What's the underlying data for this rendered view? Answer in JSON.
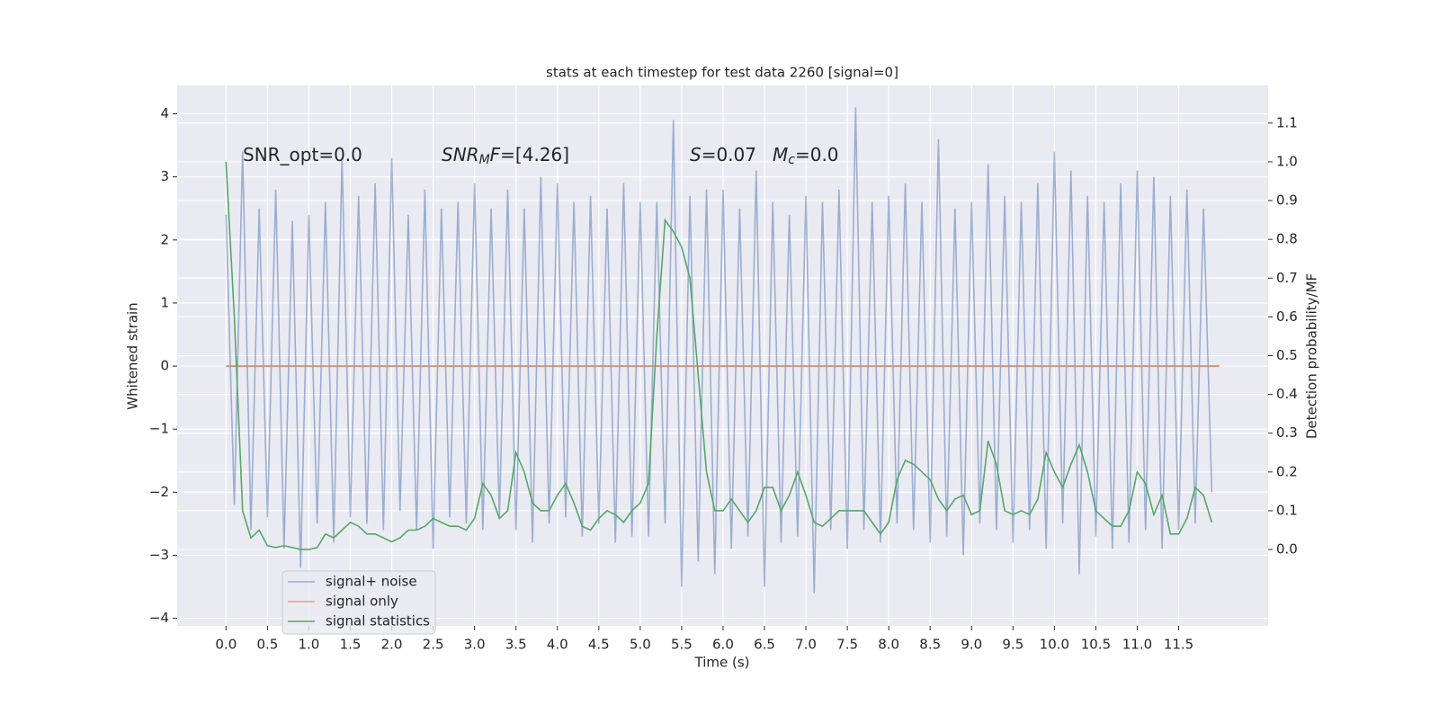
{
  "chart_data": {
    "type": "line",
    "title": "stats at each timestep for test data 2260 [signal=0]",
    "xlabel": "Time (s)",
    "ylabel": "Whitened strain",
    "y2label": "Detection probability/MF",
    "xlim": [
      -0.59,
      12.58
    ],
    "ylim": [
      -4.12,
      4.45
    ],
    "y2lim": [
      -0.197,
      1.197
    ],
    "xticks": [
      {
        "value": 0,
        "label": "0.0"
      },
      0.5,
      {
        "value": 1,
        "label": "1.0"
      },
      1.5,
      {
        "value": 2,
        "label": "2.0"
      },
      2.5,
      {
        "value": 3,
        "label": "3.0"
      },
      3.5,
      {
        "value": 4,
        "label": "4.0"
      },
      4.5,
      {
        "value": 5,
        "label": "5.0"
      },
      5.5,
      {
        "value": 6,
        "label": "6.0"
      },
      6.5,
      {
        "value": 7,
        "label": "7.0"
      },
      7.5,
      {
        "value": 8,
        "label": "8.0"
      },
      8.5,
      {
        "value": 9,
        "label": "9.0"
      },
      9.5,
      {
        "value": 10,
        "label": "10.0"
      },
      10.5,
      {
        "value": 11,
        "label": "11.0"
      },
      11.5
    ],
    "yticks": [
      {
        "value": -4,
        "label": "−4"
      },
      {
        "value": -3,
        "label": "−3"
      },
      {
        "value": -2,
        "label": "−2"
      },
      {
        "value": -1,
        "label": "−1"
      },
      0,
      1,
      2,
      3,
      4
    ],
    "y2ticks": [
      {
        "value": 0,
        "label": "0.0"
      },
      0.1,
      0.2,
      0.3,
      0.4,
      0.5,
      0.6,
      0.7,
      0.8,
      0.9,
      {
        "value": 1,
        "label": "1.0"
      },
      1.1
    ],
    "grid": true,
    "legend": "lower left",
    "x": [
      0.0,
      0.1,
      0.2,
      0.3,
      0.4,
      0.5,
      0.6,
      0.7,
      0.8,
      0.9,
      1.0,
      1.1,
      1.2,
      1.3,
      1.4,
      1.5,
      1.6,
      1.7,
      1.8,
      1.9,
      2.0,
      2.1,
      2.2,
      2.3,
      2.4,
      2.5,
      2.6,
      2.7,
      2.8,
      2.9,
      3.0,
      3.1,
      3.2,
      3.3,
      3.4,
      3.5,
      3.6,
      3.7,
      3.8,
      3.9,
      4.0,
      4.1,
      4.2,
      4.3,
      4.4,
      4.5,
      4.6,
      4.7,
      4.8,
      4.9,
      5.0,
      5.1,
      5.2,
      5.3,
      5.4,
      5.5,
      5.6,
      5.7,
      5.8,
      5.9,
      6.0,
      6.1,
      6.2,
      6.3,
      6.4,
      6.5,
      6.6,
      6.7,
      6.8,
      6.9,
      7.0,
      7.1,
      7.2,
      7.3,
      7.4,
      7.5,
      7.6,
      7.7,
      7.8,
      7.9,
      8.0,
      8.1,
      8.2,
      8.3,
      8.4,
      8.5,
      8.6,
      8.7,
      8.8,
      8.9,
      9.0,
      9.1,
      9.2,
      9.3,
      9.4,
      9.5,
      9.6,
      9.7,
      9.8,
      9.9,
      10.0,
      10.1,
      10.2,
      10.3,
      10.4,
      10.5,
      10.6,
      10.7,
      10.8,
      10.9,
      11.0,
      11.1,
      11.2,
      11.3,
      11.4,
      11.5,
      11.6,
      11.7,
      11.8,
      11.9
    ],
    "series": [
      {
        "name": "signal+ noise",
        "color": "#4c72b0",
        "opacity": 0.5,
        "values": [
          2.4,
          -2.2,
          3.4,
          -2.6,
          2.5,
          -2.4,
          2.8,
          -2.9,
          2.3,
          -3.2,
          2.4,
          -2.5,
          2.6,
          -2.8,
          3.3,
          -2.4,
          2.7,
          -2.5,
          2.9,
          -2.6,
          3.3,
          -2.3,
          2.4,
          -2.6,
          2.8,
          -2.9,
          2.5,
          -2.4,
          2.6,
          -2.5,
          2.9,
          -2.6,
          2.5,
          -2.4,
          2.8,
          -2.6,
          2.5,
          -2.8,
          3.0,
          -2.5,
          2.9,
          -2.4,
          2.6,
          -2.7,
          2.7,
          -2.5,
          2.5,
          -2.8,
          2.9,
          -2.7,
          2.6,
          -2.7,
          2.6,
          -2.5,
          3.9,
          -3.5,
          2.7,
          -3.1,
          2.8,
          -3.3,
          2.8,
          -2.9,
          2.5,
          -2.7,
          3.1,
          -3.5,
          2.6,
          -2.8,
          2.4,
          -2.7,
          2.7,
          -3.6,
          2.6,
          -2.6,
          2.8,
          -2.9,
          4.1,
          -2.6,
          2.6,
          -2.8,
          2.7,
          -2.5,
          2.9,
          -2.6,
          2.6,
          -2.8,
          3.6,
          -2.7,
          2.5,
          -3.0,
          2.6,
          -2.5,
          3.2,
          -2.6,
          2.7,
          -2.8,
          2.6,
          -2.6,
          2.9,
          -2.9,
          3.4,
          -2.5,
          3.1,
          -3.3,
          2.7,
          -2.7,
          2.6,
          -2.9,
          2.9,
          -2.8,
          3.1,
          -2.6,
          3.0,
          -2.9,
          2.7,
          -2.6,
          2.8,
          -2.5,
          2.5,
          -2.0
        ]
      },
      {
        "name": "signal only",
        "color": "#dd8452",
        "x": [
          0.0,
          11.99
        ],
        "values": [
          0,
          0
        ]
      },
      {
        "name": "signal statistics",
        "color": "#55a868",
        "axis": "y2",
        "values": [
          1.0,
          0.6,
          0.1,
          0.03,
          0.05,
          0.01,
          0.005,
          0.01,
          0.005,
          0.0,
          0.0,
          0.005,
          0.04,
          0.03,
          0.05,
          0.07,
          0.06,
          0.04,
          0.04,
          0.03,
          0.02,
          0.03,
          0.05,
          0.05,
          0.06,
          0.08,
          0.07,
          0.06,
          0.06,
          0.05,
          0.08,
          0.17,
          0.14,
          0.08,
          0.1,
          0.25,
          0.2,
          0.12,
          0.1,
          0.1,
          0.14,
          0.17,
          0.12,
          0.06,
          0.05,
          0.08,
          0.1,
          0.09,
          0.07,
          0.1,
          0.12,
          0.17,
          0.55,
          0.85,
          0.82,
          0.78,
          0.7,
          0.45,
          0.2,
          0.1,
          0.1,
          0.13,
          0.1,
          0.07,
          0.1,
          0.16,
          0.16,
          0.1,
          0.14,
          0.2,
          0.14,
          0.07,
          0.06,
          0.08,
          0.1,
          0.1,
          0.1,
          0.1,
          0.07,
          0.04,
          0.07,
          0.18,
          0.23,
          0.22,
          0.2,
          0.18,
          0.13,
          0.1,
          0.13,
          0.14,
          0.09,
          0.1,
          0.28,
          0.22,
          0.1,
          0.09,
          0.1,
          0.09,
          0.13,
          0.25,
          0.2,
          0.16,
          0.22,
          0.27,
          0.2,
          0.1,
          0.08,
          0.06,
          0.06,
          0.1,
          0.2,
          0.17,
          0.09,
          0.14,
          0.04,
          0.04,
          0.08,
          0.16,
          0.14,
          0.07
        ]
      }
    ],
    "annotations": [
      [
        {
          "text": "SNR_opt=0.0"
        }
      ],
      [
        {
          "text": "SNR",
          "italic": true
        },
        {
          "text": "M",
          "italic": true,
          "sub": true
        },
        {
          "text": "F",
          "italic": true
        },
        {
          "text": "=[4.26]"
        }
      ],
      [
        {
          "text": "S",
          "italic": true
        },
        {
          "text": "=0.07"
        }
      ],
      [
        {
          "text": "M",
          "italic": true
        },
        {
          "text": "c",
          "italic": true,
          "sub": true
        },
        {
          "text": "=0.0"
        }
      ]
    ]
  }
}
